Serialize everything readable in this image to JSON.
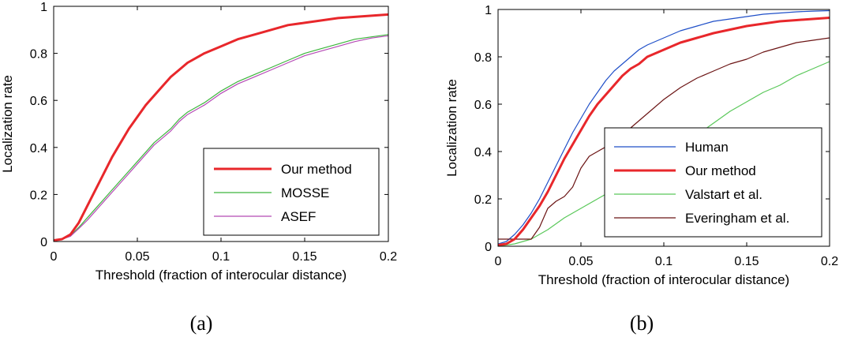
{
  "chart_data": [
    {
      "type": "line",
      "caption": "(a)",
      "xlabel": "Threshold (fraction of interocular distance)",
      "ylabel": "Localization rate",
      "xlim": [
        0,
        0.2
      ],
      "ylim": [
        0,
        1
      ],
      "xticks": [
        "0",
        "0.05",
        "0.1",
        "0.15",
        "0.2"
      ],
      "yticks": [
        "0",
        "0.2",
        "0.4",
        "0.6",
        "0.8",
        "1"
      ],
      "legend": "bottom-right",
      "series": [
        {
          "name": "Our method",
          "color": "#e8272b",
          "width": 3,
          "points": [
            [
              0,
              0.005
            ],
            [
              0.005,
              0.01
            ],
            [
              0.01,
              0.03
            ],
            [
              0.015,
              0.08
            ],
            [
              0.02,
              0.15
            ],
            [
              0.025,
              0.22
            ],
            [
              0.03,
              0.29
            ],
            [
              0.035,
              0.36
            ],
            [
              0.04,
              0.42
            ],
            [
              0.045,
              0.48
            ],
            [
              0.05,
              0.53
            ],
            [
              0.055,
              0.58
            ],
            [
              0.06,
              0.62
            ],
            [
              0.065,
              0.66
            ],
            [
              0.07,
              0.7
            ],
            [
              0.075,
              0.73
            ],
            [
              0.08,
              0.76
            ],
            [
              0.085,
              0.78
            ],
            [
              0.09,
              0.8
            ],
            [
              0.1,
              0.83
            ],
            [
              0.11,
              0.86
            ],
            [
              0.12,
              0.88
            ],
            [
              0.13,
              0.9
            ],
            [
              0.14,
              0.92
            ],
            [
              0.15,
              0.93
            ],
            [
              0.16,
              0.94
            ],
            [
              0.17,
              0.95
            ],
            [
              0.18,
              0.955
            ],
            [
              0.19,
              0.96
            ],
            [
              0.2,
              0.965
            ]
          ]
        },
        {
          "name": "MOSSE",
          "color": "#3cb53c",
          "width": 1.2,
          "points": [
            [
              0,
              0.005
            ],
            [
              0.005,
              0.01
            ],
            [
              0.01,
              0.025
            ],
            [
              0.015,
              0.06
            ],
            [
              0.02,
              0.1
            ],
            [
              0.025,
              0.14
            ],
            [
              0.03,
              0.18
            ],
            [
              0.035,
              0.22
            ],
            [
              0.04,
              0.26
            ],
            [
              0.045,
              0.3
            ],
            [
              0.05,
              0.34
            ],
            [
              0.055,
              0.38
            ],
            [
              0.06,
              0.42
            ],
            [
              0.065,
              0.45
            ],
            [
              0.07,
              0.48
            ],
            [
              0.075,
              0.52
            ],
            [
              0.08,
              0.55
            ],
            [
              0.085,
              0.57
            ],
            [
              0.09,
              0.59
            ],
            [
              0.1,
              0.64
            ],
            [
              0.11,
              0.68
            ],
            [
              0.12,
              0.71
            ],
            [
              0.13,
              0.74
            ],
            [
              0.14,
              0.77
            ],
            [
              0.15,
              0.8
            ],
            [
              0.16,
              0.82
            ],
            [
              0.17,
              0.84
            ],
            [
              0.18,
              0.86
            ],
            [
              0.19,
              0.87
            ],
            [
              0.2,
              0.88
            ]
          ]
        },
        {
          "name": "ASEF",
          "color": "#b54ab5",
          "width": 1.2,
          "points": [
            [
              0,
              0.005
            ],
            [
              0.005,
              0.01
            ],
            [
              0.01,
              0.022
            ],
            [
              0.015,
              0.055
            ],
            [
              0.02,
              0.09
            ],
            [
              0.025,
              0.13
            ],
            [
              0.03,
              0.17
            ],
            [
              0.035,
              0.21
            ],
            [
              0.04,
              0.25
            ],
            [
              0.045,
              0.29
            ],
            [
              0.05,
              0.33
            ],
            [
              0.055,
              0.37
            ],
            [
              0.06,
              0.41
            ],
            [
              0.065,
              0.44
            ],
            [
              0.07,
              0.47
            ],
            [
              0.075,
              0.51
            ],
            [
              0.08,
              0.54
            ],
            [
              0.085,
              0.56
            ],
            [
              0.09,
              0.58
            ],
            [
              0.1,
              0.63
            ],
            [
              0.11,
              0.67
            ],
            [
              0.12,
              0.7
            ],
            [
              0.13,
              0.73
            ],
            [
              0.14,
              0.76
            ],
            [
              0.15,
              0.79
            ],
            [
              0.16,
              0.81
            ],
            [
              0.17,
              0.83
            ],
            [
              0.18,
              0.85
            ],
            [
              0.19,
              0.865
            ],
            [
              0.2,
              0.875
            ]
          ]
        }
      ]
    },
    {
      "type": "line",
      "caption": "(b)",
      "xlabel": "Threshold (fraction of interocular distance)",
      "ylabel": "Localization rate",
      "xlim": [
        0,
        0.2
      ],
      "ylim": [
        0,
        1
      ],
      "xticks": [
        "0",
        "0.05",
        "0.1",
        "0.15",
        "0.2"
      ],
      "yticks": [
        "0",
        "0.2",
        "0.4",
        "0.6",
        "0.8",
        "1"
      ],
      "legend": "bottom-right",
      "series": [
        {
          "name": "Human",
          "color": "#1f4fc8",
          "width": 1.2,
          "points": [
            [
              0,
              0.01
            ],
            [
              0.005,
              0.02
            ],
            [
              0.01,
              0.05
            ],
            [
              0.015,
              0.09
            ],
            [
              0.02,
              0.14
            ],
            [
              0.025,
              0.2
            ],
            [
              0.03,
              0.27
            ],
            [
              0.035,
              0.34
            ],
            [
              0.04,
              0.41
            ],
            [
              0.045,
              0.48
            ],
            [
              0.05,
              0.54
            ],
            [
              0.055,
              0.6
            ],
            [
              0.06,
              0.65
            ],
            [
              0.065,
              0.7
            ],
            [
              0.07,
              0.74
            ],
            [
              0.075,
              0.77
            ],
            [
              0.08,
              0.8
            ],
            [
              0.085,
              0.83
            ],
            [
              0.09,
              0.85
            ],
            [
              0.1,
              0.88
            ],
            [
              0.11,
              0.91
            ],
            [
              0.12,
              0.93
            ],
            [
              0.13,
              0.95
            ],
            [
              0.14,
              0.96
            ],
            [
              0.15,
              0.97
            ],
            [
              0.16,
              0.98
            ],
            [
              0.17,
              0.985
            ],
            [
              0.18,
              0.99
            ],
            [
              0.19,
              0.993
            ],
            [
              0.2,
              0.995
            ]
          ]
        },
        {
          "name": "Our method",
          "color": "#e8272b",
          "width": 3,
          "points": [
            [
              0,
              0.005
            ],
            [
              0.005,
              0.01
            ],
            [
              0.01,
              0.03
            ],
            [
              0.015,
              0.07
            ],
            [
              0.02,
              0.12
            ],
            [
              0.025,
              0.17
            ],
            [
              0.03,
              0.23
            ],
            [
              0.035,
              0.3
            ],
            [
              0.04,
              0.37
            ],
            [
              0.045,
              0.43
            ],
            [
              0.05,
              0.49
            ],
            [
              0.055,
              0.55
            ],
            [
              0.06,
              0.6
            ],
            [
              0.065,
              0.64
            ],
            [
              0.07,
              0.68
            ],
            [
              0.075,
              0.72
            ],
            [
              0.08,
              0.75
            ],
            [
              0.085,
              0.77
            ],
            [
              0.09,
              0.8
            ],
            [
              0.1,
              0.83
            ],
            [
              0.11,
              0.86
            ],
            [
              0.12,
              0.88
            ],
            [
              0.13,
              0.9
            ],
            [
              0.14,
              0.915
            ],
            [
              0.15,
              0.93
            ],
            [
              0.16,
              0.94
            ],
            [
              0.17,
              0.95
            ],
            [
              0.18,
              0.955
            ],
            [
              0.19,
              0.96
            ],
            [
              0.2,
              0.965
            ]
          ]
        },
        {
          "name": "Valstart et al.",
          "color": "#5ac85a",
          "width": 1.2,
          "points": [
            [
              0,
              0.0
            ],
            [
              0.01,
              0.01
            ],
            [
              0.02,
              0.03
            ],
            [
              0.03,
              0.07
            ],
            [
              0.04,
              0.12
            ],
            [
              0.05,
              0.16
            ],
            [
              0.06,
              0.2
            ],
            [
              0.07,
              0.24
            ],
            [
              0.08,
              0.28
            ],
            [
              0.09,
              0.32
            ],
            [
              0.1,
              0.37
            ],
            [
              0.11,
              0.42
            ],
            [
              0.12,
              0.47
            ],
            [
              0.13,
              0.52
            ],
            [
              0.14,
              0.57
            ],
            [
              0.15,
              0.61
            ],
            [
              0.16,
              0.65
            ],
            [
              0.17,
              0.68
            ],
            [
              0.18,
              0.72
            ],
            [
              0.19,
              0.75
            ],
            [
              0.2,
              0.78
            ]
          ]
        },
        {
          "name": "Everingham et al.",
          "color": "#6b1414",
          "width": 1.2,
          "points": [
            [
              0,
              0.03
            ],
            [
              0.01,
              0.03
            ],
            [
              0.02,
              0.03
            ],
            [
              0.025,
              0.08
            ],
            [
              0.03,
              0.16
            ],
            [
              0.035,
              0.19
            ],
            [
              0.04,
              0.21
            ],
            [
              0.045,
              0.25
            ],
            [
              0.05,
              0.33
            ],
            [
              0.055,
              0.38
            ],
            [
              0.06,
              0.4
            ],
            [
              0.07,
              0.44
            ],
            [
              0.08,
              0.5
            ],
            [
              0.09,
              0.56
            ],
            [
              0.1,
              0.62
            ],
            [
              0.11,
              0.67
            ],
            [
              0.12,
              0.71
            ],
            [
              0.13,
              0.74
            ],
            [
              0.14,
              0.77
            ],
            [
              0.15,
              0.79
            ],
            [
              0.16,
              0.82
            ],
            [
              0.17,
              0.84
            ],
            [
              0.18,
              0.86
            ],
            [
              0.19,
              0.87
            ],
            [
              0.2,
              0.88
            ]
          ]
        }
      ]
    }
  ]
}
